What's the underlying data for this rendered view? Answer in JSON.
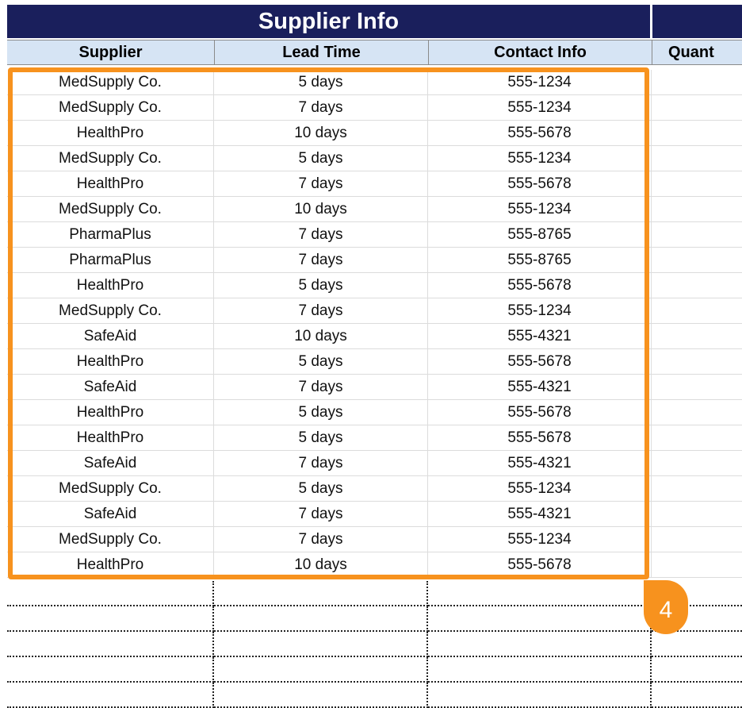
{
  "sheet": {
    "section_title": "Supplier Info",
    "columns": [
      "Supplier",
      "Lead Time",
      "Contact Info",
      "Quant"
    ],
    "rows": [
      [
        "MedSupply Co.",
        "5 days",
        "555-1234"
      ],
      [
        "MedSupply Co.",
        "7 days",
        "555-1234"
      ],
      [
        "HealthPro",
        "10 days",
        "555-5678"
      ],
      [
        "MedSupply Co.",
        "5 days",
        "555-1234"
      ],
      [
        "HealthPro",
        "7 days",
        "555-5678"
      ],
      [
        "MedSupply Co.",
        "10 days",
        "555-1234"
      ],
      [
        "PharmaPlus",
        "7 days",
        "555-8765"
      ],
      [
        "PharmaPlus",
        "7 days",
        "555-8765"
      ],
      [
        "HealthPro",
        "5 days",
        "555-5678"
      ],
      [
        "MedSupply Co.",
        "7 days",
        "555-1234"
      ],
      [
        "SafeAid",
        "10 days",
        "555-4321"
      ],
      [
        "HealthPro",
        "5 days",
        "555-5678"
      ],
      [
        "SafeAid",
        "7 days",
        "555-4321"
      ],
      [
        "HealthPro",
        "5 days",
        "555-5678"
      ],
      [
        "HealthPro",
        "5 days",
        "555-5678"
      ],
      [
        "SafeAid",
        "7 days",
        "555-4321"
      ],
      [
        "MedSupply Co.",
        "5 days",
        "555-1234"
      ],
      [
        "SafeAid",
        "7 days",
        "555-4321"
      ],
      [
        "MedSupply Co.",
        "7 days",
        "555-1234"
      ],
      [
        "HealthPro",
        "10 days",
        "555-5678"
      ]
    ]
  },
  "callout": {
    "step_number": "4"
  },
  "colors": {
    "title_band": "#1a1f5c",
    "header_band": "#d6e4f4",
    "highlight": "#f7921e"
  }
}
